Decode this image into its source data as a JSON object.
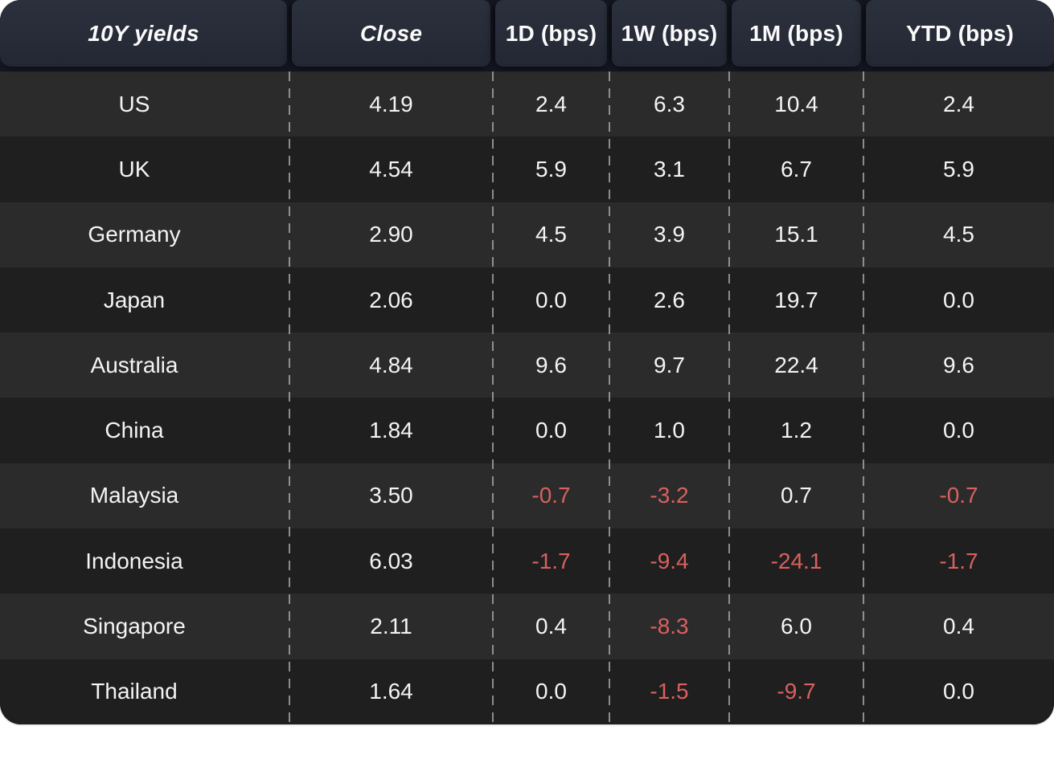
{
  "title": "10Y yields",
  "table": {
    "header": [
      {
        "key": "yields",
        "label": "10Y yields",
        "italic": true
      },
      {
        "key": "close",
        "label": "Close",
        "italic": true
      },
      {
        "key": "1d",
        "label": "1D (bps)",
        "italic": false
      },
      {
        "key": "1w",
        "label": "1W (bps)",
        "italic": false
      },
      {
        "key": "1m",
        "label": "1M (bps)",
        "italic": false
      },
      {
        "key": "ytd",
        "label": "YTD (bps)",
        "italic": false
      }
    ],
    "rows": [
      {
        "country": "US",
        "values": [
          "4.19",
          "2.4",
          "6.3",
          "10.4",
          "2.4"
        ]
      },
      {
        "country": "UK",
        "values": [
          "4.54",
          "5.9",
          "3.1",
          "6.7",
          "5.9"
        ]
      },
      {
        "country": "Germany",
        "values": [
          "2.90",
          "4.5",
          "3.9",
          "15.1",
          "4.5"
        ]
      },
      {
        "country": "Japan",
        "values": [
          "2.06",
          "0.0",
          "2.6",
          "19.7",
          "0.0"
        ]
      },
      {
        "country": "Australia",
        "values": [
          "4.84",
          "9.6",
          "9.7",
          "22.4",
          "9.6"
        ]
      },
      {
        "country": "China",
        "values": [
          "1.84",
          "0.0",
          "1.0",
          "1.2",
          "0.0"
        ]
      },
      {
        "country": "Malaysia",
        "values": [
          "3.50",
          "-0.7",
          "-3.2",
          "0.7",
          "-0.7"
        ]
      },
      {
        "country": "Indonesia",
        "values": [
          "6.03",
          "-1.7",
          "-9.4",
          "-24.1",
          "-1.7"
        ]
      },
      {
        "country": "Singapore",
        "values": [
          "2.11",
          "0.4",
          "-8.3",
          "6.0",
          "0.4"
        ]
      },
      {
        "country": "Thailand",
        "values": [
          "1.64",
          "0.0",
          "-1.5",
          "-9.7",
          "0.0"
        ]
      }
    ]
  },
  "colors": {
    "header_bg": "#272c38",
    "header_gap": "#141721",
    "row_light": "#2b2b2b",
    "row_dark": "#1f1f1f",
    "text": "#f4f4f4",
    "negative": "#d9615e",
    "dash": "#a8a8a8"
  },
  "chart_data": {
    "type": "table",
    "title": "10Y yields",
    "columns": [
      "10Y yields",
      "Close",
      "1D (bps)",
      "1W (bps)",
      "1M (bps)",
      "YTD (bps)"
    ],
    "rows": [
      [
        "US",
        4.19,
        2.4,
        6.3,
        10.4,
        2.4
      ],
      [
        "UK",
        4.54,
        5.9,
        3.1,
        6.7,
        5.9
      ],
      [
        "Germany",
        2.9,
        4.5,
        3.9,
        15.1,
        4.5
      ],
      [
        "Japan",
        2.06,
        0.0,
        2.6,
        19.7,
        0.0
      ],
      [
        "Australia",
        4.84,
        9.6,
        9.7,
        22.4,
        9.6
      ],
      [
        "China",
        1.84,
        0.0,
        1.0,
        1.2,
        0.0
      ],
      [
        "Malaysia",
        3.5,
        -0.7,
        -3.2,
        0.7,
        -0.7
      ],
      [
        "Indonesia",
        6.03,
        -1.7,
        -9.4,
        -24.1,
        -1.7
      ],
      [
        "Singapore",
        2.11,
        0.4,
        -8.3,
        6.0,
        0.4
      ],
      [
        "Thailand",
        1.64,
        0.0,
        -1.5,
        -9.7,
        0.0
      ]
    ],
    "layout_hints": {
      "negative_values_colored_red": true,
      "zebra_striping": true,
      "dashed_column_separators": true
    }
  }
}
